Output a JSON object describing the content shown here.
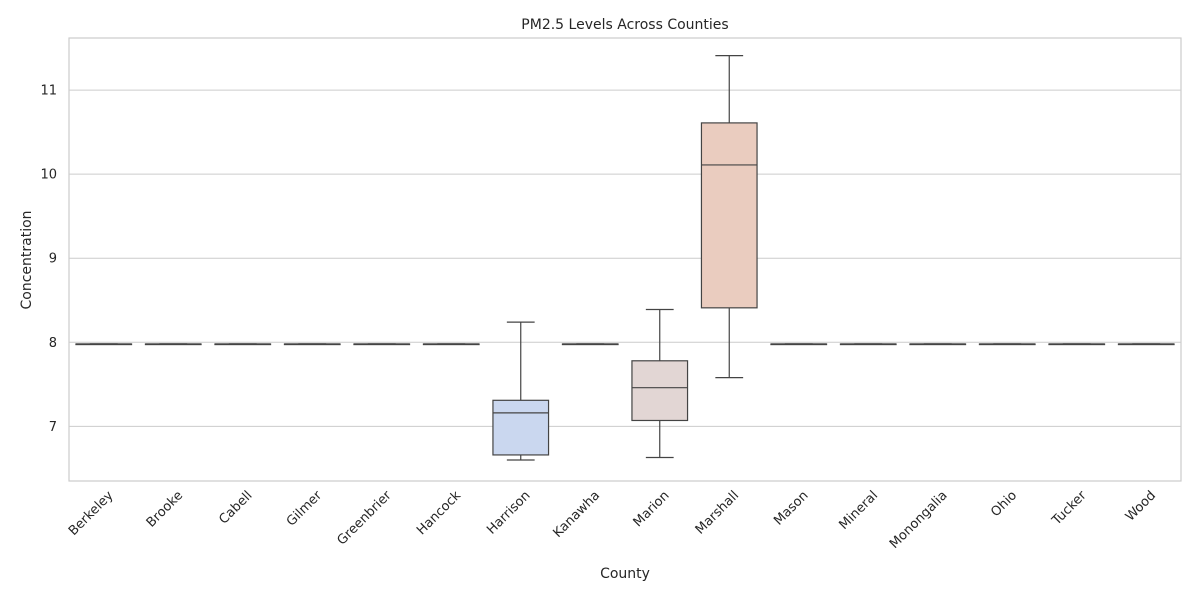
{
  "chart_data": {
    "type": "box",
    "title": "PM2.5 Levels Across Counties",
    "xlabel": "County",
    "ylabel": "Concentration",
    "ylim": [
      6.35,
      11.62
    ],
    "yticks": [
      7,
      8,
      9,
      10,
      11
    ],
    "grid": "horizontal",
    "categories": [
      "Berkeley",
      "Brooke",
      "Cabell",
      "Gilmer",
      "Greenbrier",
      "Hancock",
      "Harrison",
      "Kanawha",
      "Marion",
      "Marshall",
      "Mason",
      "Mineral",
      "Monongalia",
      "Ohio",
      "Tucker",
      "Wood"
    ],
    "boxes": [
      {
        "min": 7.98,
        "q1": 7.98,
        "median": 7.98,
        "q3": 7.98,
        "max": 7.98,
        "color": "#c8d2ea"
      },
      {
        "min": 7.98,
        "q1": 7.98,
        "median": 7.98,
        "q3": 7.98,
        "max": 7.98,
        "color": "#c9d2e8"
      },
      {
        "min": 7.98,
        "q1": 7.98,
        "median": 7.98,
        "q3": 7.98,
        "max": 7.98,
        "color": "#cbd3e6"
      },
      {
        "min": 7.98,
        "q1": 7.98,
        "median": 7.98,
        "q3": 7.98,
        "max": 7.98,
        "color": "#cdd4e5"
      },
      {
        "min": 7.98,
        "q1": 7.98,
        "median": 7.98,
        "q3": 7.98,
        "max": 7.98,
        "color": "#cfd5e3"
      },
      {
        "min": 7.98,
        "q1": 7.98,
        "median": 7.98,
        "q3": 7.98,
        "max": 7.98,
        "color": "#d1d6e1"
      },
      {
        "min": 6.6,
        "q1": 6.66,
        "median": 7.16,
        "q3": 7.31,
        "max": 8.24,
        "color": "#cad7ef"
      },
      {
        "min": 7.98,
        "q1": 7.98,
        "median": 7.98,
        "q3": 7.98,
        "max": 7.98,
        "color": "#d6d7dd"
      },
      {
        "min": 6.63,
        "q1": 7.07,
        "median": 7.46,
        "q3": 7.78,
        "max": 8.39,
        "color": "#e2d6d4"
      },
      {
        "min": 7.58,
        "q1": 8.41,
        "median": 10.11,
        "q3": 10.61,
        "max": 11.41,
        "color": "#eaccbf"
      },
      {
        "min": 7.98,
        "q1": 7.98,
        "median": 7.98,
        "q3": 7.98,
        "max": 7.98,
        "color": "#dcd7da"
      },
      {
        "min": 7.98,
        "q1": 7.98,
        "median": 7.98,
        "q3": 7.98,
        "max": 7.98,
        "color": "#ded7d8"
      },
      {
        "min": 7.98,
        "q1": 7.98,
        "median": 7.98,
        "q3": 7.98,
        "max": 7.98,
        "color": "#e0d6d6"
      },
      {
        "min": 7.98,
        "q1": 7.98,
        "median": 7.98,
        "q3": 7.98,
        "max": 7.98,
        "color": "#e2d5d3"
      },
      {
        "min": 7.98,
        "q1": 7.98,
        "median": 7.98,
        "q3": 7.98,
        "max": 7.98,
        "color": "#e4d4d0"
      },
      {
        "min": 7.98,
        "q1": 7.98,
        "median": 7.98,
        "q3": 7.98,
        "max": 7.98,
        "color": "#e6d2cc"
      }
    ]
  }
}
